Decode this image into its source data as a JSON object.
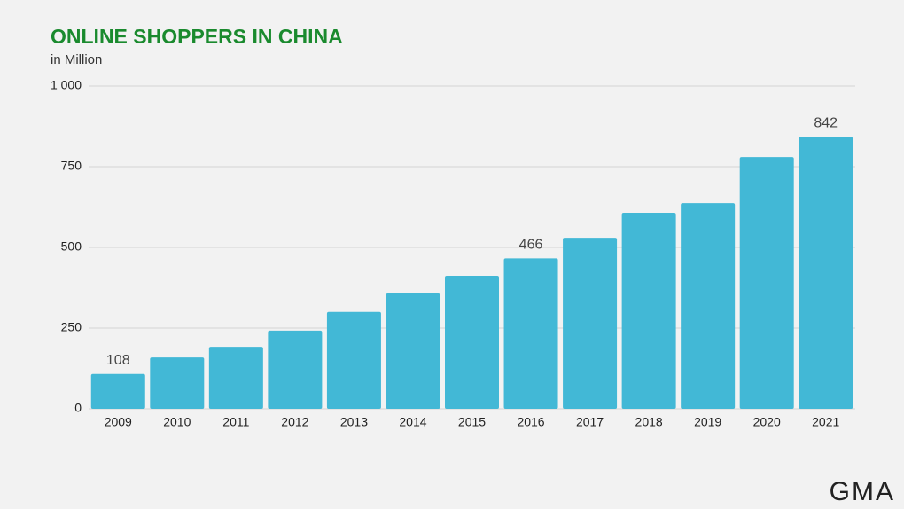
{
  "chart_data": {
    "type": "bar",
    "title": "ONLINE SHOPPERS IN CHINA",
    "subtitle": "in Million",
    "categories": [
      "2009",
      "2010",
      "2011",
      "2012",
      "2013",
      "2014",
      "2015",
      "2016",
      "2017",
      "2018",
      "2019",
      "2020",
      "2021"
    ],
    "values": [
      108,
      159,
      192,
      242,
      300,
      360,
      412,
      466,
      530,
      607,
      637,
      780,
      842
    ],
    "value_labels": [
      "108",
      null,
      null,
      null,
      null,
      null,
      null,
      "466",
      null,
      null,
      null,
      null,
      "842"
    ],
    "color": "#42b8d6",
    "ylim": [
      0,
      1000
    ],
    "yticks": [
      0,
      250,
      500,
      750,
      {
        "value": 1000,
        "label": "1 000"
      }
    ],
    "grid": true
  },
  "logo": "GMA"
}
